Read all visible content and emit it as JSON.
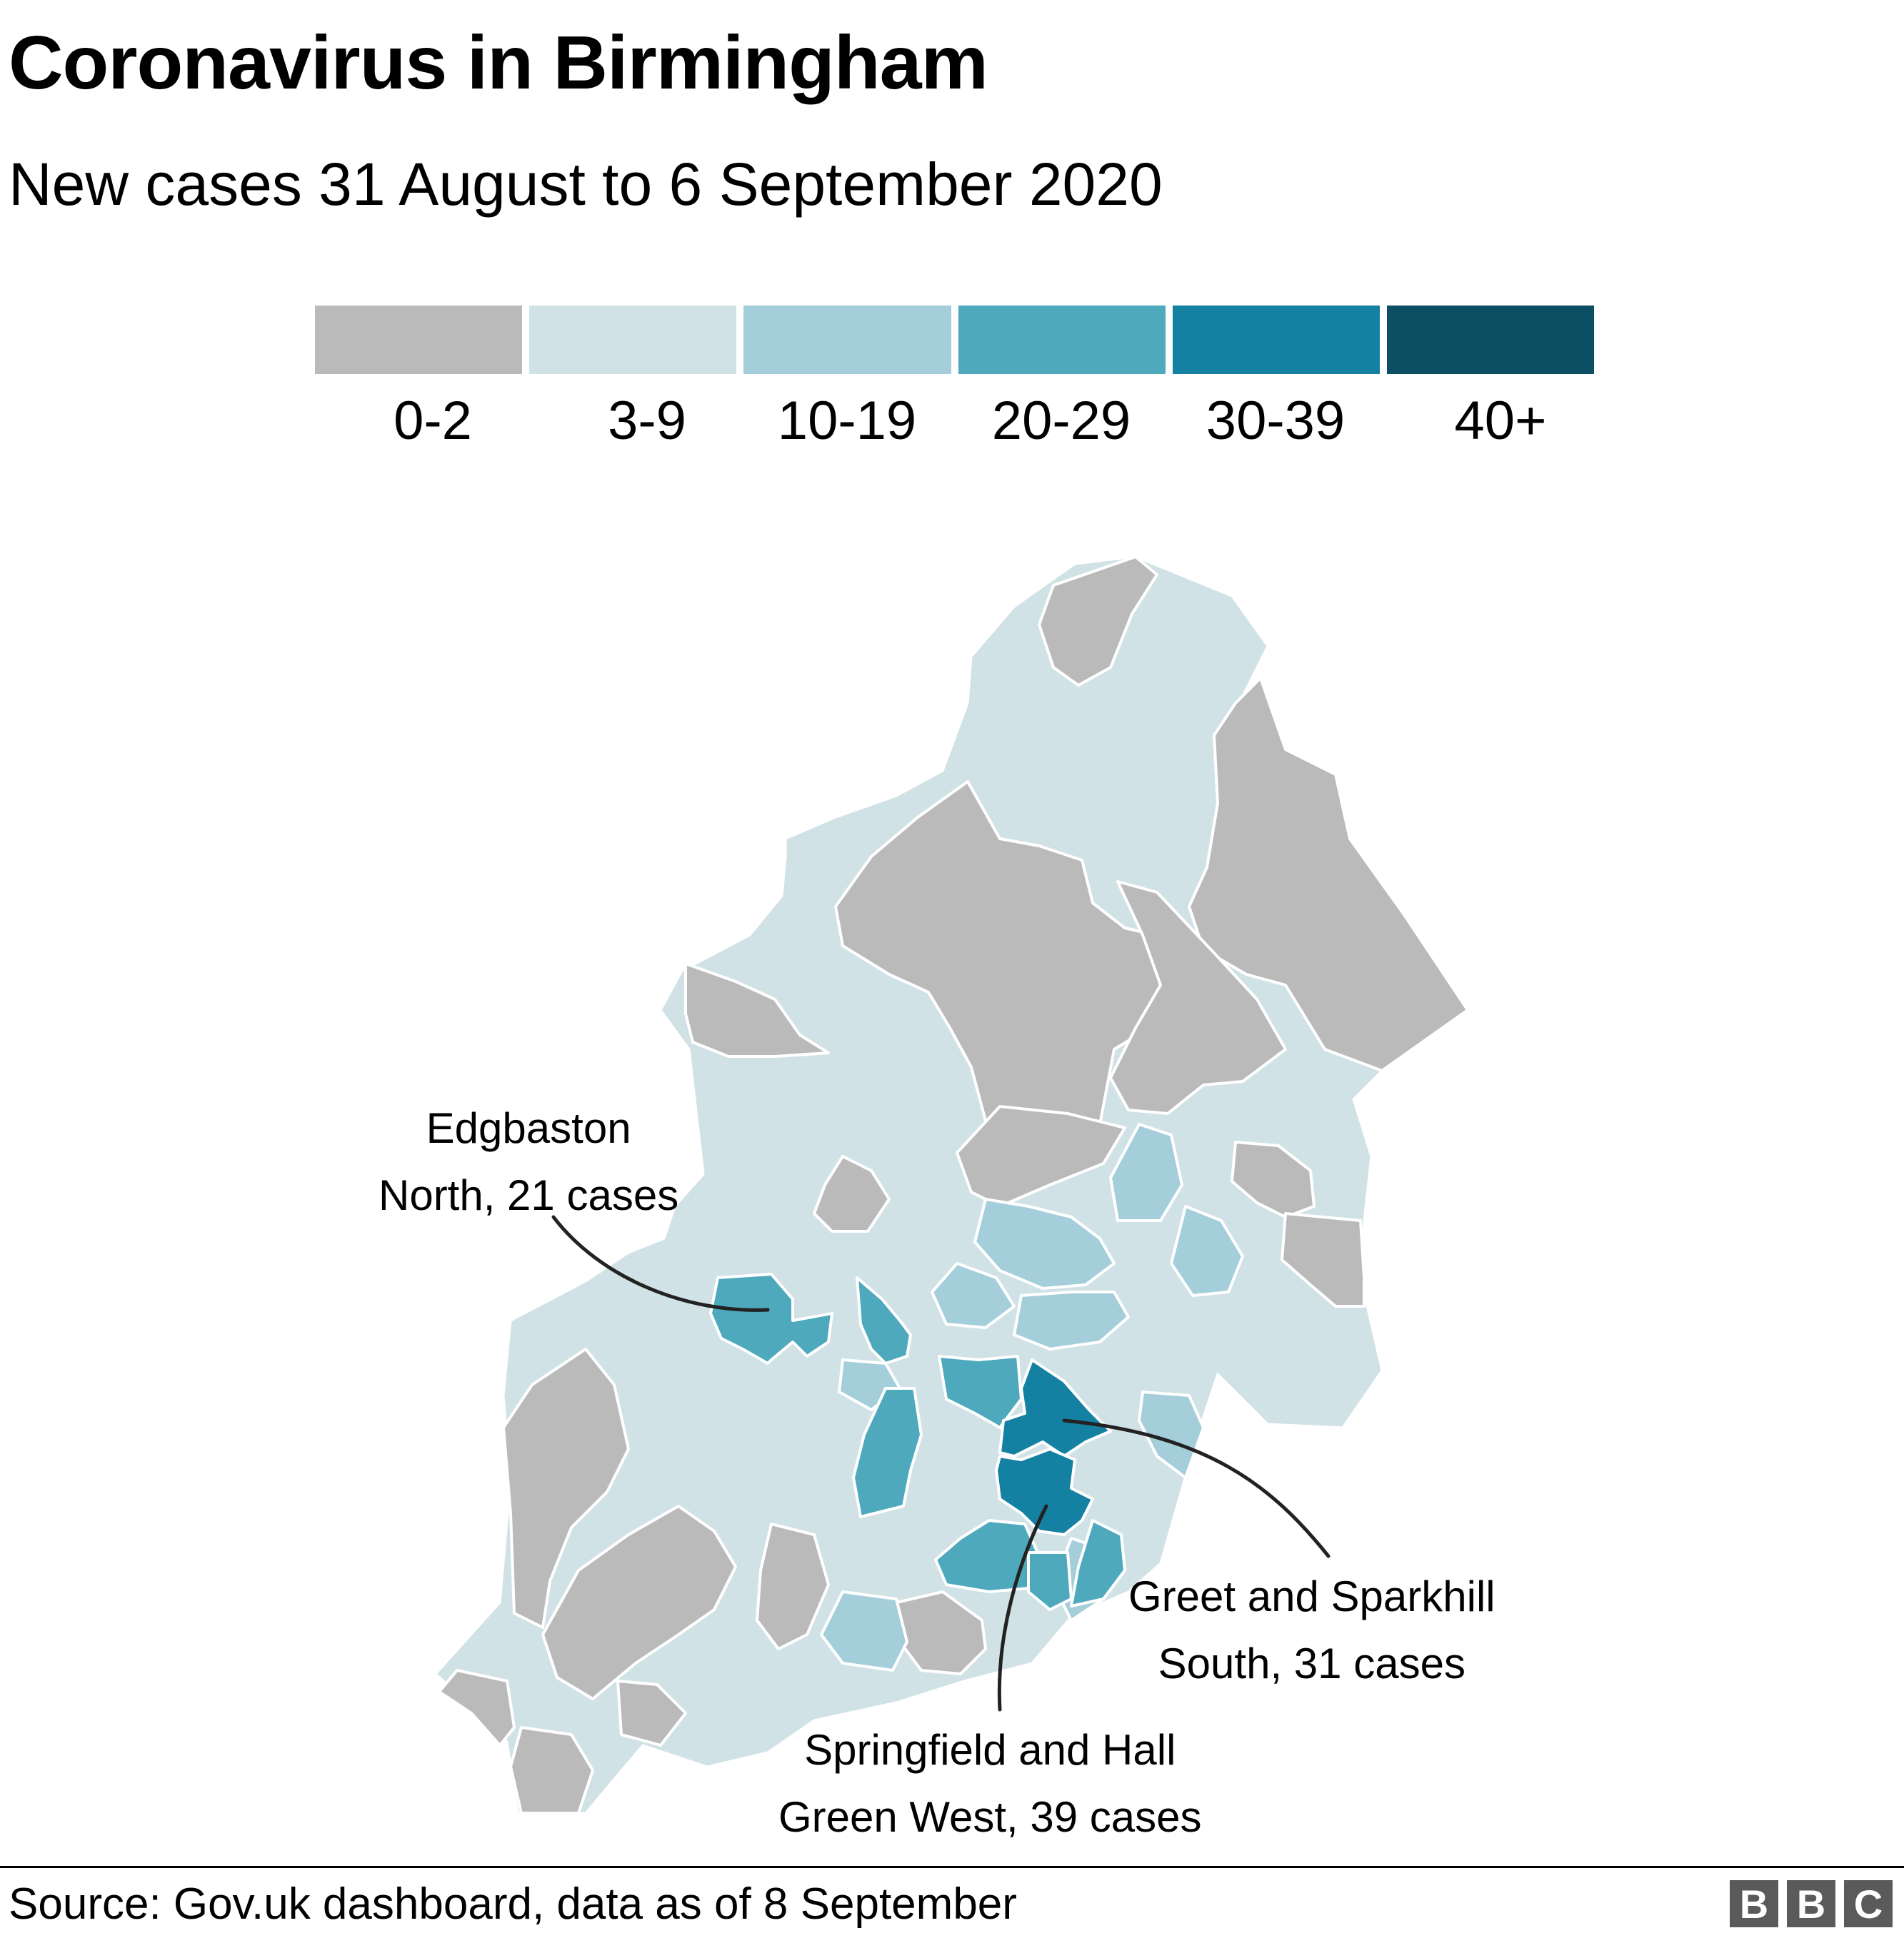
{
  "title": "Coronavirus in Birmingham",
  "subtitle": "New cases 31 August to 6 September 2020",
  "legend": [
    {
      "label": "0-2",
      "color": "#bababa"
    },
    {
      "label": "3-9",
      "color": "#d1e2e7"
    },
    {
      "label": "10-19",
      "color": "#a5cedb"
    },
    {
      "label": "20-29",
      "color": "#4ea9bd"
    },
    {
      "label": "30-39",
      "color": "#1581a2"
    },
    {
      "label": "40+",
      "color": "#0c4e62"
    }
  ],
  "annotations": {
    "edgbaston": {
      "line1": "Edgbaston",
      "line2": "North, 21 cases"
    },
    "greet": {
      "line1": "Greet and Sparkhill",
      "line2": "South, 31 cases"
    },
    "springfield": {
      "line1": "Springfield and Hall",
      "line2": "Green West, 39 cases"
    }
  },
  "source": "Source: Gov.uk dashboard, data as of 8 September",
  "logo": {
    "letters": [
      "B",
      "B",
      "C"
    ]
  },
  "colors": {
    "border": "#ffffff",
    "annotation_line": "#222222"
  }
}
